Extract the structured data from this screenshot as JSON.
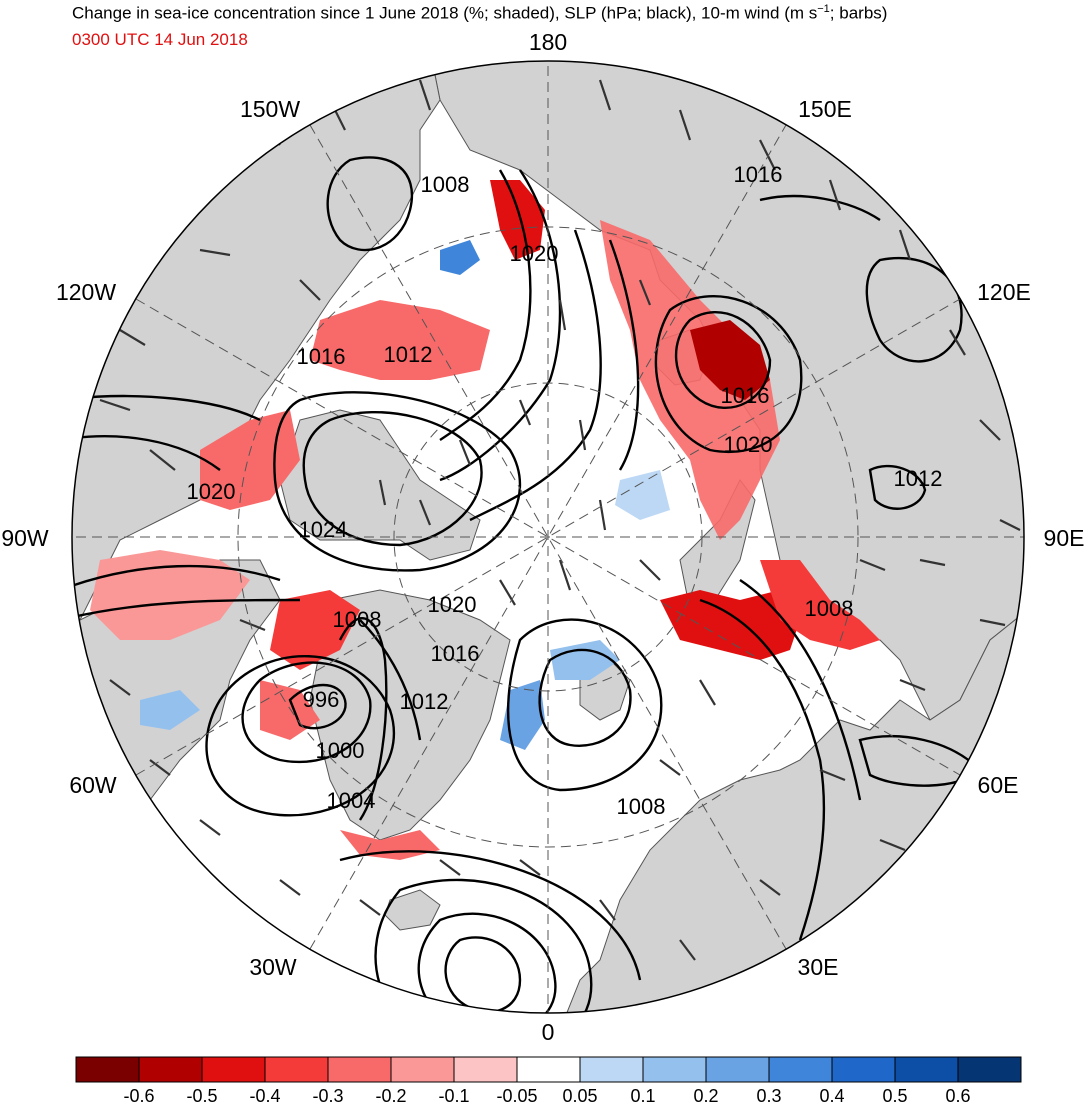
{
  "header": {
    "title_prefix": "Change in sea-ice concentration since 1 June 2018 (%; shaded), SLP (hPa; black), 10-m wind (m s",
    "title_exp": "−1",
    "title_suffix": "; barbs)",
    "valid_time": "0300 UTC 14 Jun 2018"
  },
  "longitude_labels": [
    "180",
    "150E",
    "120E",
    "90E",
    "60E",
    "30E",
    "0",
    "30W",
    "60W",
    "90W",
    "120W",
    "150W"
  ],
  "slp_contour_labels": [
    "1008",
    "1016",
    "1020",
    "1016",
    "1012",
    "1016",
    "1020",
    "1012",
    "1020",
    "1024",
    "1008",
    "1020",
    "1016",
    "1008",
    "996",
    "1012",
    "1000",
    "1004",
    "1008"
  ],
  "colorbar": {
    "tick_labels": [
      "-0.6",
      "-0.5",
      "-0.4",
      "-0.3",
      "-0.2",
      "-0.1",
      "-0.05",
      "0.05",
      "0.1",
      "0.2",
      "0.3",
      "0.4",
      "0.5",
      "0.6"
    ],
    "colors": [
      "#7a0000",
      "#b00000",
      "#e01010",
      "#f53a3a",
      "#f86a6a",
      "#fa9898",
      "#fcc4c4",
      "#ffffff",
      "#bcd8f5",
      "#94c0ee",
      "#6aa3e4",
      "#3f85d9",
      "#1f67c8",
      "#0d4ea6",
      "#063574"
    ]
  },
  "map_colors": {
    "land": "#d2d2d2",
    "ocean": "#ffffff",
    "contour": "#000000",
    "ice_loss": "#e01010",
    "ice_gain": "#3f85d9"
  }
}
